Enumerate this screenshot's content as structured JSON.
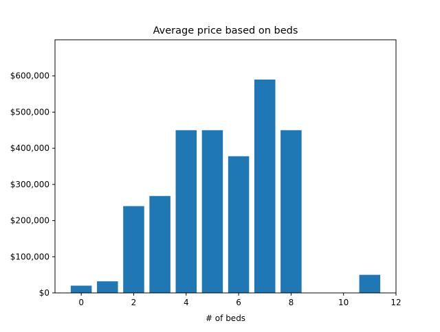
{
  "chart_data": {
    "type": "bar",
    "title": "Average price based on beds",
    "xlabel": "# of beds",
    "ylabel": "",
    "x": [
      0,
      1,
      2,
      3,
      4,
      5,
      6,
      7,
      8,
      11
    ],
    "values": [
      20000,
      32000,
      240000,
      268000,
      450000,
      450000,
      378000,
      590000,
      450000,
      50000
    ],
    "xlim": [
      -1,
      12
    ],
    "ylim": [
      0,
      700000
    ],
    "xticks": [
      0,
      2,
      4,
      6,
      8,
      10,
      12
    ],
    "xtick_labels": [
      "0",
      "2",
      "4",
      "6",
      "8",
      "10",
      "12"
    ],
    "yticks": [
      0,
      100000,
      200000,
      300000,
      400000,
      500000,
      600000
    ],
    "ytick_labels": [
      "$0",
      "$100,000",
      "$200,000",
      "$300,000",
      "$400,000",
      "$500,000",
      "$600,000"
    ],
    "bar_width": 0.8,
    "bar_color": "#1f77b4",
    "grid": false,
    "legend": "none"
  }
}
